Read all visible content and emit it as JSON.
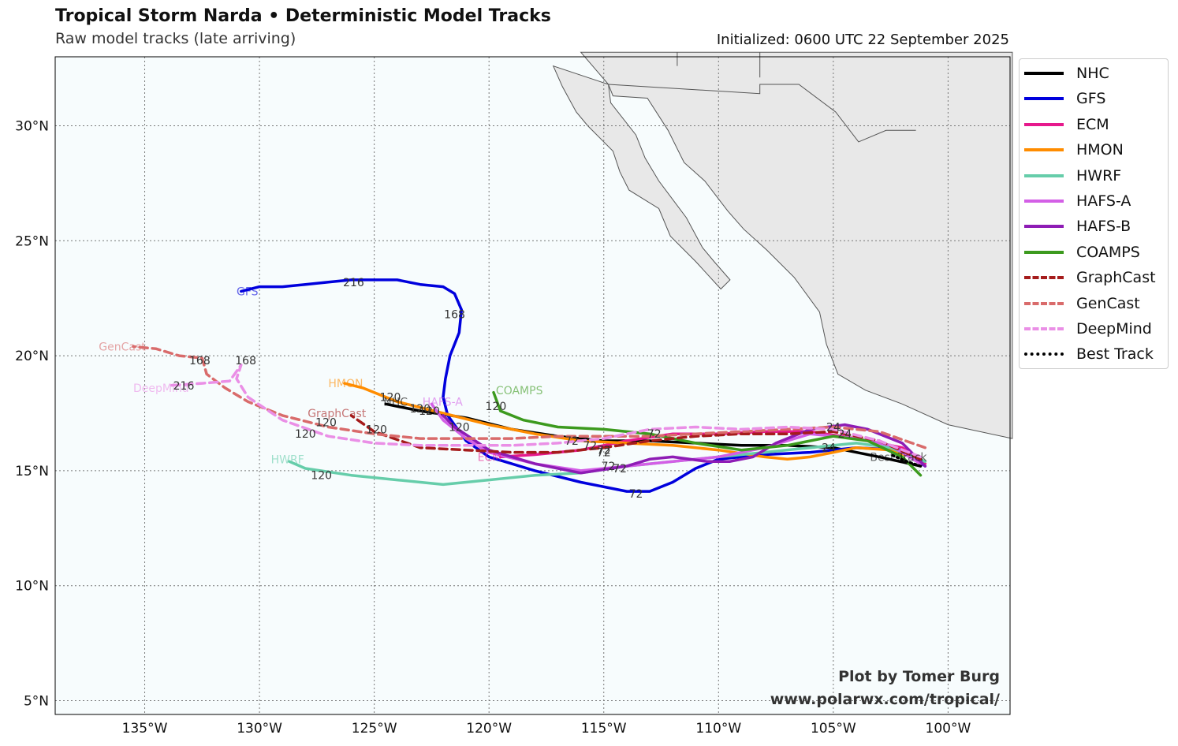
{
  "header": {
    "title": "Tropical Storm Narda • Deterministic Model Tracks",
    "subtitle": "Raw model tracks (late arriving)",
    "initialized": "Initialized: 0600 UTC 22 September 2025"
  },
  "credit": {
    "line1": "Plot by Tomer Burg",
    "line2": "www.polarwx.com/tropical/"
  },
  "map_extent": {
    "lon_min": -138.9,
    "lon_max": -97.3,
    "lat_min": 4.4,
    "lat_max": 33.0
  },
  "axes": {
    "lat_ticks": [
      {
        "value": 30,
        "label": "30°N"
      },
      {
        "value": 25,
        "label": "25°N"
      },
      {
        "value": 20,
        "label": "20°N"
      },
      {
        "value": 15,
        "label": "15°N"
      },
      {
        "value": 10,
        "label": "10°N"
      },
      {
        "value": 5,
        "label": "5°N"
      }
    ],
    "lon_ticks": [
      {
        "value": -135,
        "label": "135°W"
      },
      {
        "value": -130,
        "label": "130°W"
      },
      {
        "value": -125,
        "label": "125°W"
      },
      {
        "value": -120,
        "label": "120°W"
      },
      {
        "value": -115,
        "label": "115°W"
      },
      {
        "value": -110,
        "label": "110°W"
      },
      {
        "value": -105,
        "label": "105°W"
      },
      {
        "value": -100,
        "label": "100°W"
      }
    ]
  },
  "colors": {
    "ocean": "#f7fcfd",
    "land": "#e8e8e8",
    "coast": "#555555"
  },
  "models": [
    {
      "name": "NHC",
      "color": "#000000",
      "style": "solid",
      "track": [
        [
          -101.2,
          15.2
        ],
        [
          -103,
          15.6
        ],
        [
          -105,
          16.0
        ],
        [
          -107,
          16.1
        ],
        [
          -109,
          16.1
        ],
        [
          -111,
          16.2
        ],
        [
          -113,
          16.3
        ],
        [
          -115,
          16.3
        ],
        [
          -117,
          16.5
        ],
        [
          -119,
          16.8
        ],
        [
          -121,
          17.3
        ],
        [
          -123,
          17.6
        ],
        [
          -124.5,
          17.9
        ]
      ],
      "label": "NHC",
      "label_at": [
        -124.6,
        18.0
      ],
      "hours": [
        {
          "h": "24",
          "at": [
            -105.2,
            16.0
          ]
        },
        {
          "h": "72",
          "at": [
            -115.6,
            16.1
          ]
        },
        {
          "h": "120",
          "at": [
            -123,
            17.7
          ]
        }
      ]
    },
    {
      "name": "GFS",
      "color": "#0000dd",
      "style": "solid",
      "track": [
        [
          -101,
          15.2
        ],
        [
          -102,
          15.9
        ],
        [
          -104,
          16.0
        ],
        [
          -106,
          15.8
        ],
        [
          -108,
          15.7
        ],
        [
          -110,
          15.5
        ],
        [
          -111,
          15.1
        ],
        [
          -112,
          14.5
        ],
        [
          -113,
          14.1
        ],
        [
          -114,
          14.1
        ],
        [
          -116,
          14.5
        ],
        [
          -118,
          15.0
        ],
        [
          -120,
          15.6
        ],
        [
          -121,
          16.3
        ],
        [
          -121.8,
          17.4
        ],
        [
          -122,
          18.2
        ],
        [
          -121.9,
          19.0
        ],
        [
          -121.7,
          20.0
        ],
        [
          -121.3,
          21.0
        ],
        [
          -121.2,
          22.0
        ],
        [
          -121.5,
          22.7
        ],
        [
          -122,
          23.0
        ],
        [
          -123,
          23.1
        ],
        [
          -124,
          23.3
        ],
        [
          -125,
          23.3
        ],
        [
          -126,
          23.3
        ],
        [
          -127,
          23.2
        ],
        [
          -128,
          23.1
        ],
        [
          -129,
          23.0
        ],
        [
          -130,
          23.0
        ],
        [
          -130.8,
          22.8
        ]
      ],
      "label": "GFS",
      "label_at": [
        -131.0,
        22.8
      ],
      "hours": [
        {
          "h": "72",
          "at": [
            -113.6,
            14.0
          ]
        },
        {
          "h": "168",
          "at": [
            -121.5,
            21.8
          ]
        },
        {
          "h": "216",
          "at": [
            -125.9,
            23.2
          ]
        }
      ]
    },
    {
      "name": "ECM",
      "color": "#e6198c",
      "style": "solid",
      "track": [
        [
          -101,
          15.3
        ],
        [
          -102,
          16.0
        ],
        [
          -104,
          16.4
        ],
        [
          -106,
          16.7
        ],
        [
          -108,
          16.7
        ],
        [
          -110,
          16.6
        ],
        [
          -112,
          16.6
        ],
        [
          -114,
          16.3
        ],
        [
          -116,
          15.9
        ],
        [
          -118,
          15.7
        ],
        [
          -119.5,
          15.6
        ]
      ],
      "label": "ECM",
      "label_at": [
        -120.5,
        15.6
      ],
      "hours": [
        {
          "h": "72",
          "at": [
            -115.0,
            15.9
          ]
        }
      ]
    },
    {
      "name": "HMON",
      "color": "#ff8c00",
      "style": "solid",
      "track": [
        [
          -101,
          15.4
        ],
        [
          -102.5,
          15.9
        ],
        [
          -104,
          16.0
        ],
        [
          -105,
          15.8
        ],
        [
          -106,
          15.6
        ],
        [
          -107,
          15.5
        ],
        [
          -108,
          15.6
        ],
        [
          -110,
          15.9
        ],
        [
          -112,
          16.1
        ],
        [
          -114,
          16.2
        ],
        [
          -116,
          16.3
        ],
        [
          -118,
          16.6
        ],
        [
          -120,
          17.0
        ],
        [
          -122,
          17.5
        ],
        [
          -124,
          18.0
        ],
        [
          -125.5,
          18.6
        ],
        [
          -126.3,
          18.8
        ]
      ],
      "label": "HMON",
      "label_at": [
        -127.0,
        18.8
      ],
      "hours": [
        {
          "h": "72",
          "at": [
            -116.4,
            16.3
          ]
        },
        {
          "h": "120",
          "at": [
            -124.3,
            18.2
          ]
        }
      ]
    },
    {
      "name": "HWRF",
      "color": "#66cdaa",
      "style": "solid",
      "track": [
        [
          -101,
          15.4
        ],
        [
          -102.5,
          16.0
        ],
        [
          -104,
          16.2
        ],
        [
          -106,
          16.0
        ],
        [
          -108,
          15.8
        ],
        [
          -110,
          15.6
        ],
        [
          -112,
          15.4
        ],
        [
          -114,
          15.2
        ],
        [
          -116,
          14.9
        ],
        [
          -118,
          14.8
        ],
        [
          -120,
          14.6
        ],
        [
          -122,
          14.4
        ],
        [
          -124,
          14.6
        ],
        [
          -126,
          14.8
        ],
        [
          -128,
          15.1
        ],
        [
          -128.7,
          15.4
        ]
      ],
      "label": "HWRF",
      "label_at": [
        -129.5,
        15.5
      ],
      "hours": [
        {
          "h": "120",
          "at": [
            -127.3,
            14.8
          ]
        }
      ]
    },
    {
      "name": "HAFS-A",
      "color": "#d35fe6",
      "style": "solid",
      "track": [
        [
          -101.2,
          15.3
        ],
        [
          -102.5,
          16.1
        ],
        [
          -104,
          16.4
        ],
        [
          -106,
          16.6
        ],
        [
          -108,
          16.0
        ],
        [
          -110,
          15.6
        ],
        [
          -112,
          15.4
        ],
        [
          -114,
          15.2
        ],
        [
          -116,
          15.0
        ],
        [
          -118,
          15.3
        ],
        [
          -120,
          15.8
        ],
        [
          -121,
          16.4
        ],
        [
          -122,
          17.2
        ],
        [
          -122.5,
          17.9
        ]
      ],
      "label": "HAFS-A",
      "label_at": [
        -122.9,
        18.0
      ],
      "hours": [
        {
          "h": "72",
          "at": [
            -114.8,
            15.2
          ]
        },
        {
          "h": "120",
          "at": [
            -121.3,
            16.9
          ]
        }
      ]
    },
    {
      "name": "HAFS-B",
      "color": "#8e1cb5",
      "style": "solid",
      "track": [
        [
          -101,
          15.2
        ],
        [
          -102,
          16.2
        ],
        [
          -103.5,
          16.8
        ],
        [
          -104.5,
          17.0
        ],
        [
          -106,
          16.8
        ],
        [
          -107.5,
          16.2
        ],
        [
          -108.5,
          15.6
        ],
        [
          -109.5,
          15.4
        ],
        [
          -110.5,
          15.4
        ],
        [
          -112,
          15.6
        ],
        [
          -113,
          15.5
        ],
        [
          -114,
          15.2
        ],
        [
          -116,
          14.9
        ],
        [
          -118,
          15.3
        ],
        [
          -120,
          15.9
        ],
        [
          -121.5,
          16.9
        ],
        [
          -122,
          17.4
        ]
      ],
      "label": "",
      "label_at": [
        -122,
        17.4
      ],
      "hours": [
        {
          "h": "72",
          "at": [
            -114.3,
            15.1
          ]
        },
        {
          "h": "120",
          "at": [
            -122.6,
            17.6
          ]
        }
      ]
    },
    {
      "name": "COAMPS",
      "color": "#3c9a1e",
      "style": "solid",
      "track": [
        [
          -101.2,
          14.8
        ],
        [
          -102,
          15.6
        ],
        [
          -103.5,
          16.3
        ],
        [
          -105,
          16.5
        ],
        [
          -107,
          16.1
        ],
        [
          -109,
          15.9
        ],
        [
          -111,
          16.2
        ],
        [
          -113,
          16.6
        ],
        [
          -115,
          16.8
        ],
        [
          -117,
          16.9
        ],
        [
          -118.5,
          17.2
        ],
        [
          -119.5,
          17.6
        ],
        [
          -119.8,
          18.4
        ]
      ],
      "label": "COAMPS",
      "label_at": [
        -119.7,
        18.5
      ],
      "hours": [
        {
          "h": "72",
          "at": [
            -112.8,
            16.6
          ]
        },
        {
          "h": "120",
          "at": [
            -119.7,
            17.8
          ]
        }
      ]
    },
    {
      "name": "GraphCast",
      "color": "#a51c1c",
      "style": "dash",
      "track": [
        [
          -101.2,
          15.5
        ],
        [
          -103,
          16.3
        ],
        [
          -105,
          16.7
        ],
        [
          -107,
          16.6
        ],
        [
          -109,
          16.6
        ],
        [
          -111,
          16.5
        ],
        [
          -113,
          16.3
        ],
        [
          -115,
          16.0
        ],
        [
          -117,
          15.8
        ],
        [
          -119,
          15.8
        ],
        [
          -121,
          15.9
        ],
        [
          -123,
          16.0
        ],
        [
          -125,
          16.7
        ],
        [
          -126,
          17.4
        ]
      ],
      "label": "GraphCast",
      "label_at": [
        -127.9,
        17.5
      ],
      "hours": [
        {
          "h": "72",
          "at": [
            -115.0,
            15.8
          ]
        },
        {
          "h": "120",
          "at": [
            -124.9,
            16.8
          ]
        }
      ]
    },
    {
      "name": "GenCast",
      "color": "#d96b6b",
      "style": "dash",
      "track": [
        [
          -101,
          16.0
        ],
        [
          -103,
          16.7
        ],
        [
          -105,
          16.9
        ],
        [
          -107,
          16.8
        ],
        [
          -109,
          16.7
        ],
        [
          -111,
          16.6
        ],
        [
          -113,
          16.5
        ],
        [
          -115,
          16.5
        ],
        [
          -117,
          16.5
        ],
        [
          -119,
          16.4
        ],
        [
          -121,
          16.4
        ],
        [
          -123,
          16.4
        ],
        [
          -125,
          16.6
        ],
        [
          -127,
          16.9
        ],
        [
          -129,
          17.4
        ],
        [
          -130.5,
          18.0
        ],
        [
          -131.5,
          18.6
        ],
        [
          -132.3,
          19.2
        ],
        [
          -132.5,
          19.9
        ],
        [
          -133.5,
          20.0
        ],
        [
          -134.5,
          20.3
        ],
        [
          -135.5,
          20.4
        ]
      ],
      "label": "GenCast",
      "label_at": [
        -137.0,
        20.4
      ],
      "hours": [
        {
          "h": "24",
          "at": [
            -105.0,
            16.9
          ]
        },
        {
          "h": "120",
          "at": [
            -127.1,
            17.1
          ]
        },
        {
          "h": "168",
          "at": [
            -132.6,
            19.8
          ]
        }
      ]
    },
    {
      "name": "DeepMind",
      "color": "#ea8fe6",
      "style": "dash",
      "track": [
        [
          -101.2,
          15.6
        ],
        [
          -103,
          16.3
        ],
        [
          -105,
          16.8
        ],
        [
          -107,
          16.9
        ],
        [
          -109,
          16.8
        ],
        [
          -111,
          16.9
        ],
        [
          -113,
          16.8
        ],
        [
          -115,
          16.4
        ],
        [
          -117,
          16.2
        ],
        [
          -119,
          16.1
        ],
        [
          -121,
          16.1
        ],
        [
          -123,
          16.1
        ],
        [
          -125,
          16.2
        ],
        [
          -127,
          16.5
        ],
        [
          -129,
          17.2
        ],
        [
          -130.5,
          18.2
        ],
        [
          -131,
          19.0
        ],
        [
          -130.8,
          19.6
        ],
        [
          -131.3,
          18.9
        ],
        [
          -132.5,
          18.8
        ],
        [
          -134,
          18.7
        ]
      ],
      "label": "DeepMind",
      "label_at": [
        -135.5,
        18.6
      ],
      "hours": [
        {
          "h": "24",
          "at": [
            -104.5,
            16.6
          ]
        },
        {
          "h": "120",
          "at": [
            -128.0,
            16.6
          ]
        },
        {
          "h": "168",
          "at": [
            -130.6,
            19.8
          ]
        },
        {
          "h": "216",
          "at": [
            -133.3,
            18.7
          ]
        }
      ]
    },
    {
      "name": "Best Track",
      "color": "#000000",
      "style": "dot",
      "track": [
        [
          -101.2,
          15.2
        ],
        [
          -101.8,
          15.4
        ],
        [
          -102.5,
          15.7
        ]
      ],
      "label": "Best Track",
      "label_at": [
        -103.4,
        15.6
      ],
      "hours": []
    }
  ]
}
